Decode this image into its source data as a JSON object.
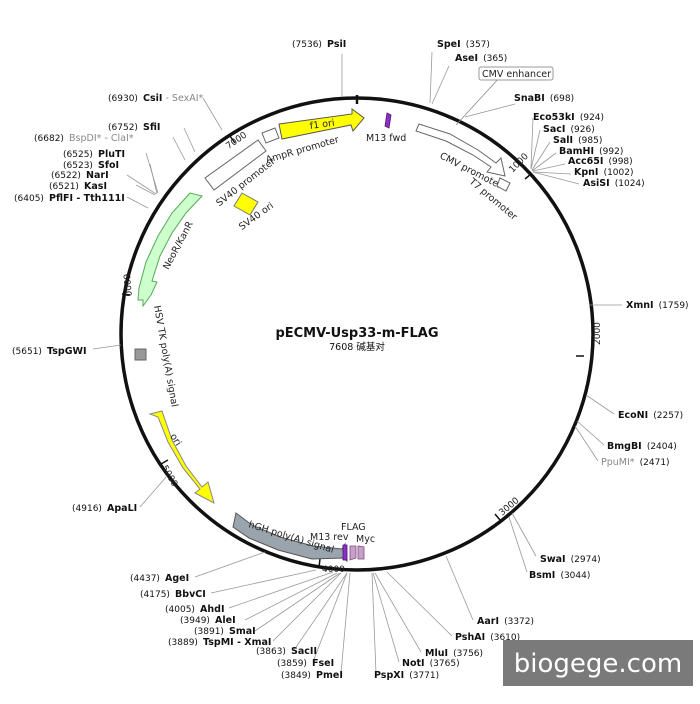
{
  "plasmid": {
    "name": "pECMV-Usp33-m-FLAG",
    "size_label": "7608 碱基对",
    "length": 7608
  },
  "watermark": "biogege.com",
  "ticks": [
    "1000",
    "2000",
    "3000",
    "4000",
    "5000",
    "6000",
    "7000"
  ],
  "sites": [
    {
      "name": "PsiI",
      "pos": "(7536)",
      "dim": false
    },
    {
      "name": "SpeI",
      "pos": "(357)",
      "dim": false
    },
    {
      "name": "AseI",
      "pos": "(365)",
      "dim": false
    },
    {
      "name": "SnaBI",
      "pos": "(698)",
      "dim": false
    },
    {
      "name": "Eco53kI",
      "pos": "(924)",
      "dim": false
    },
    {
      "name": "SacI",
      "pos": "(926)",
      "dim": false
    },
    {
      "name": "SalI",
      "pos": "(985)",
      "dim": false
    },
    {
      "name": "BamHI",
      "pos": "(992)",
      "dim": false
    },
    {
      "name": "Acc65I",
      "pos": "(998)",
      "dim": false
    },
    {
      "name": "KpnI",
      "pos": "(1002)",
      "dim": false
    },
    {
      "name": "AsiSI",
      "pos": "(1024)",
      "dim": false
    },
    {
      "name": "XmnI",
      "pos": "(1759)",
      "dim": false
    },
    {
      "name": "EcoNI",
      "pos": "(2257)",
      "dim": false
    },
    {
      "name": "BmgBI",
      "pos": "(2404)",
      "dim": false
    },
    {
      "name": "PpuMI*",
      "pos": "(2471)",
      "dim": true
    },
    {
      "name": "SwaI",
      "pos": "(2974)",
      "dim": false
    },
    {
      "name": "BsmI",
      "pos": "(3044)",
      "dim": false
    },
    {
      "name": "AarI",
      "pos": "(3372)",
      "dim": false
    },
    {
      "name": "PshAI",
      "pos": "(3610)",
      "dim": false
    },
    {
      "name": "MluI",
      "pos": "(3756)",
      "dim": false
    },
    {
      "name": "NotI",
      "pos": "(3765)",
      "dim": false
    },
    {
      "name": "PspXI",
      "pos": "(3771)",
      "dim": false
    },
    {
      "name": "PmeI",
      "pos": "(3849)",
      "dim": false
    },
    {
      "name": "FseI",
      "pos": "(3859)",
      "dim": false
    },
    {
      "name": "SacII",
      "pos": "(3863)",
      "dim": false
    },
    {
      "name": "TspMI - XmaI",
      "pos": "(3889)",
      "dim": false
    },
    {
      "name": "SmaI",
      "pos": "(3891)",
      "dim": false
    },
    {
      "name": "AleI",
      "pos": "(3949)",
      "dim": false
    },
    {
      "name": "AhdI",
      "pos": "(4005)",
      "dim": false
    },
    {
      "name": "BbvCI",
      "pos": "(4175)",
      "dim": false
    },
    {
      "name": "AgeI",
      "pos": "(4437)",
      "dim": false
    },
    {
      "name": "ApaLI",
      "pos": "(4916)",
      "dim": false
    },
    {
      "name": "TspGWI",
      "pos": "(5651)",
      "dim": false
    },
    {
      "name": "PflFI - Tth111I",
      "pos": "(6405)",
      "dim": false
    },
    {
      "name": "KasI",
      "pos": "(6521)",
      "dim": false
    },
    {
      "name": "NarI",
      "pos": "(6522)",
      "dim": false
    },
    {
      "name": "SfoI",
      "pos": "(6523)",
      "dim": false
    },
    {
      "name": "PluTI",
      "pos": "(6525)",
      "dim": false
    },
    {
      "name": "BspDI* - ClaI*",
      "pos": "(6682)",
      "dim": true
    },
    {
      "name": "SfiI",
      "pos": "(6752)",
      "dim": false
    },
    {
      "name": "CsiI",
      "pos": "(6930)",
      "dim": false
    },
    {
      "name": "SexAI*",
      "pos": "",
      "dim": true
    }
  ],
  "features": [
    {
      "label": "CMV enhancer",
      "color": "#ffffff"
    },
    {
      "label": "CMV promoter",
      "color": "#ffffff"
    },
    {
      "label": "T7 promoter",
      "color": "#ffffff"
    },
    {
      "label": "M13 fwd",
      "color": "#8e2fc9"
    },
    {
      "label": "f1 ori",
      "color": "#ffff00"
    },
    {
      "label": "AmpR promoter",
      "color": "#ffffff"
    },
    {
      "label": "SV40 promoter",
      "color": "#ffffff"
    },
    {
      "label": "SV40 ori",
      "color": "#ffff00"
    },
    {
      "label": "NeoR/KanR",
      "color": "#ccffcc"
    },
    {
      "label": "HSV TK poly(A) signal",
      "color": "#999999"
    },
    {
      "label": "ori",
      "color": "#ffff00"
    },
    {
      "label": "hGH poly(A) signal",
      "color": "#999999"
    },
    {
      "label": "M13 rev",
      "color": "#8e2fc9"
    },
    {
      "label": "FLAG",
      "color": "#c9a0c9"
    },
    {
      "label": "Myc",
      "color": "#c9a0c9"
    }
  ]
}
